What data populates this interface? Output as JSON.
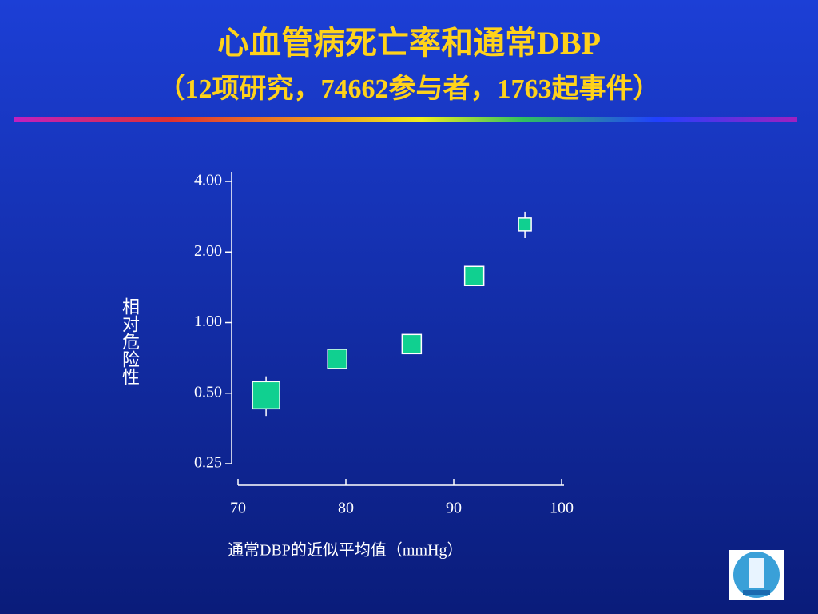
{
  "title": "心血管病死亡率和通常DBP",
  "subtitle": "（12项研究，74662参与者，1763起事件）",
  "chart_data": {
    "type": "scatter",
    "y_label": "相对危险性",
    "x_label": "通常DBP的近似平均值（mmHg）",
    "x": [
      72.6,
      79.2,
      86.1,
      91.9,
      96.6
    ],
    "values": [
      0.49,
      0.7,
      0.81,
      1.58,
      2.62
    ],
    "upper": [
      0.59,
      null,
      null,
      null,
      2.97
    ],
    "lower": [
      0.4,
      null,
      null,
      null,
      2.29
    ],
    "color": "#10d090",
    "log_y": true,
    "xlim": [
      70,
      100
    ],
    "xticks": [
      70,
      80,
      90,
      100
    ],
    "ylim": [
      0.25,
      4
    ],
    "yticks": [
      {
        "value": 4,
        "label": "4.00"
      },
      {
        "value": 2,
        "label": "2.00"
      },
      {
        "value": 1,
        "label": "1.00"
      },
      {
        "value": 0.5,
        "label": "0.50"
      },
      {
        "value": 0.25,
        "label": "0.25"
      }
    ]
  }
}
